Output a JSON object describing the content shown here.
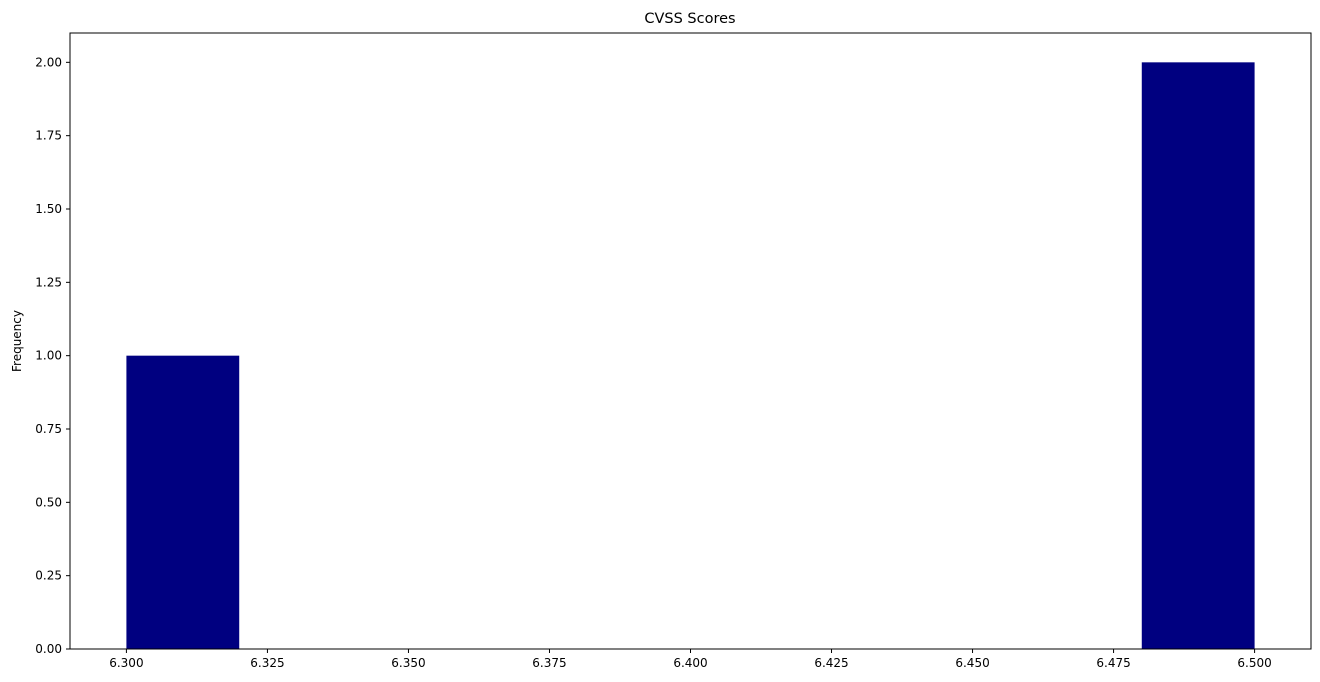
{
  "chart_data": {
    "type": "bar",
    "title": "CVSS Scores",
    "xlabel": "",
    "ylabel": "Frequency",
    "bins": [
      {
        "x_start": 6.3,
        "x_end": 6.32,
        "value": 1
      },
      {
        "x_start": 6.48,
        "x_end": 6.5,
        "value": 2
      }
    ],
    "xlim": [
      6.29,
      6.51
    ],
    "ylim": [
      0,
      2.1
    ],
    "x_ticks": [
      "6.300",
      "6.325",
      "6.350",
      "6.375",
      "6.400",
      "6.425",
      "6.450",
      "6.475",
      "6.500"
    ],
    "y_ticks": [
      "0.00",
      "0.25",
      "0.50",
      "0.75",
      "1.00",
      "1.25",
      "1.50",
      "1.75",
      "2.00"
    ],
    "bar_color": "#000080",
    "grid": false,
    "legend": "none"
  }
}
